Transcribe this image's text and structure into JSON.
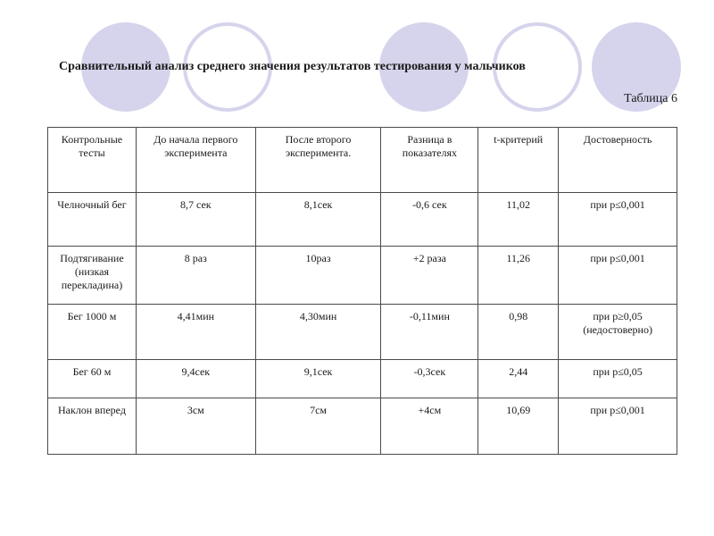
{
  "title": "Сравнительный анализ среднего значения результатов тестирования у мальчиков",
  "table_label": "Таблица 6",
  "columns": [
    "Контрольные тесты",
    "До начала первого эксперимента",
    "После второго эксперимента.",
    "Разница в показателях",
    "t-критерий",
    "Достоверность"
  ],
  "rows": [
    [
      "Челночный бег",
      "8,7 сек",
      "8,1сек",
      "-0,6 сек",
      "11,02",
      "при p≤0,001"
    ],
    [
      "Подтягивание (низкая перекладина)",
      "8 раз",
      "10раз",
      "+2 раза",
      "11,26",
      "при p≤0,001"
    ],
    [
      "Бег 1000 м",
      "4,41мин",
      "4,30мин",
      "-0,11мин",
      "0,98",
      "при p≥0,05 (недостоверно)"
    ],
    [
      "Бег 60 м",
      "9,4сек",
      "9,1сек",
      "-0,3сек",
      "2,44",
      "при p≤0,05"
    ],
    [
      "Наклон вперед",
      "3см",
      "7см",
      "+4см",
      "10,69",
      "при p≤0,001"
    ]
  ],
  "decor_color": "#d5d4ec"
}
